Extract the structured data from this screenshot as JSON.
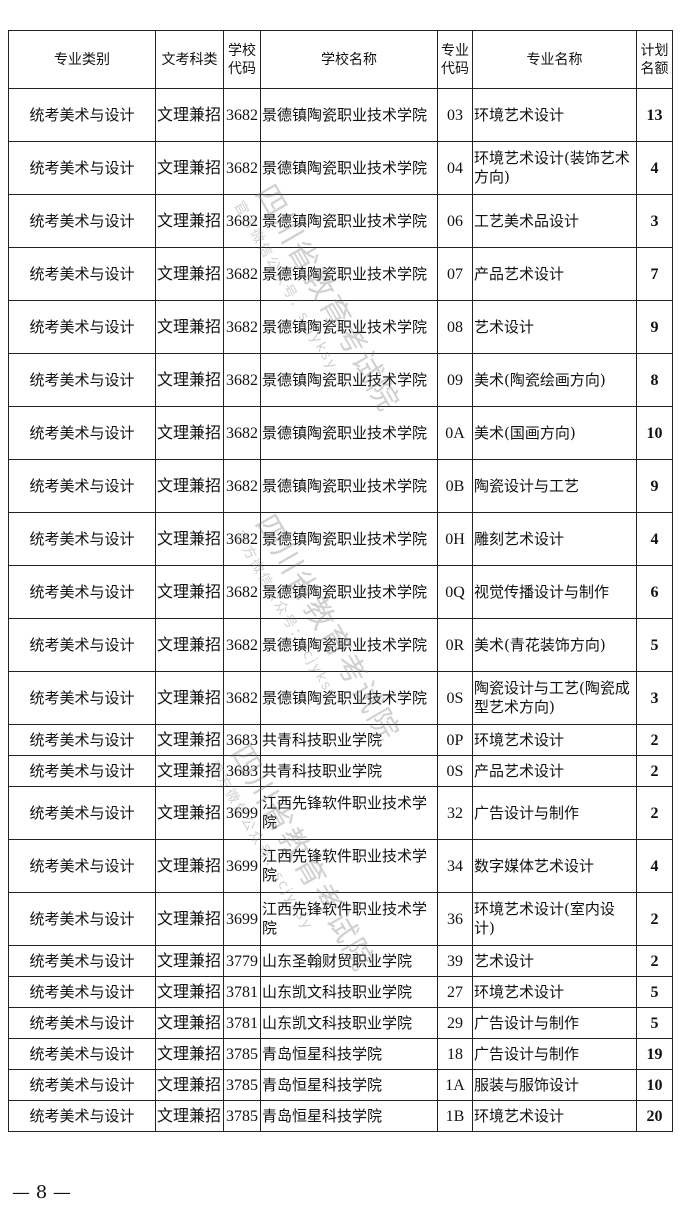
{
  "headers": [
    "专业类别",
    "文考科类",
    "学校代码",
    "学校名称",
    "专业代码",
    "专业名称",
    "计划名额"
  ],
  "rows": [
    [
      "统考美术与设计",
      "文理兼招",
      "3682",
      "景德镇陶瓷职业技术学院",
      "03",
      "环境艺术设计",
      "13"
    ],
    [
      "统考美术与设计",
      "文理兼招",
      "3682",
      "景德镇陶瓷职业技术学院",
      "04",
      "环境艺术设计(装饰艺术方向)",
      "4"
    ],
    [
      "统考美术与设计",
      "文理兼招",
      "3682",
      "景德镇陶瓷职业技术学院",
      "06",
      "工艺美术品设计",
      "3"
    ],
    [
      "统考美术与设计",
      "文理兼招",
      "3682",
      "景德镇陶瓷职业技术学院",
      "07",
      "产品艺术设计",
      "7"
    ],
    [
      "统考美术与设计",
      "文理兼招",
      "3682",
      "景德镇陶瓷职业技术学院",
      "08",
      "艺术设计",
      "9"
    ],
    [
      "统考美术与设计",
      "文理兼招",
      "3682",
      "景德镇陶瓷职业技术学院",
      "09",
      "美术(陶瓷绘画方向)",
      "8"
    ],
    [
      "统考美术与设计",
      "文理兼招",
      "3682",
      "景德镇陶瓷职业技术学院",
      "0A",
      "美术(国画方向)",
      "10"
    ],
    [
      "统考美术与设计",
      "文理兼招",
      "3682",
      "景德镇陶瓷职业技术学院",
      "0B",
      "陶瓷设计与工艺",
      "9"
    ],
    [
      "统考美术与设计",
      "文理兼招",
      "3682",
      "景德镇陶瓷职业技术学院",
      "0H",
      "雕刻艺术设计",
      "4"
    ],
    [
      "统考美术与设计",
      "文理兼招",
      "3682",
      "景德镇陶瓷职业技术学院",
      "0Q",
      "视觉传播设计与制作",
      "6"
    ],
    [
      "统考美术与设计",
      "文理兼招",
      "3682",
      "景德镇陶瓷职业技术学院",
      "0R",
      "美术(青花装饰方向)",
      "5"
    ],
    [
      "统考美术与设计",
      "文理兼招",
      "3682",
      "景德镇陶瓷职业技术学院",
      "0S",
      "陶瓷设计与工艺(陶瓷成型艺术方向)",
      "3"
    ],
    [
      "统考美术与设计",
      "文理兼招",
      "3683",
      "共青科技职业学院",
      "0P",
      "环境艺术设计",
      "2"
    ],
    [
      "统考美术与设计",
      "文理兼招",
      "3683",
      "共青科技职业学院",
      "0S",
      "产品艺术设计",
      "2"
    ],
    [
      "统考美术与设计",
      "文理兼招",
      "3699",
      "江西先锋软件职业技术学院",
      "32",
      "广告设计与制作",
      "2"
    ],
    [
      "统考美术与设计",
      "文理兼招",
      "3699",
      "江西先锋软件职业技术学院",
      "34",
      "数字媒体艺术设计",
      "4"
    ],
    [
      "统考美术与设计",
      "文理兼招",
      "3699",
      "江西先锋软件职业技术学院",
      "36",
      "环境艺术设计(室内设计)",
      "2"
    ],
    [
      "统考美术与设计",
      "文理兼招",
      "3779",
      "山东圣翰财贸职业学院",
      "39",
      "艺术设计",
      "2"
    ],
    [
      "统考美术与设计",
      "文理兼招",
      "3781",
      "山东凯文科技职业学院",
      "27",
      "环境艺术设计",
      "5"
    ],
    [
      "统考美术与设计",
      "文理兼招",
      "3781",
      "山东凯文科技职业学院",
      "29",
      "广告设计与制作",
      "5"
    ],
    [
      "统考美术与设计",
      "文理兼招",
      "3785",
      "青岛恒星科技学院",
      "18",
      "广告设计与制作",
      "19"
    ],
    [
      "统考美术与设计",
      "文理兼招",
      "3785",
      "青岛恒星科技学院",
      "1A",
      "服装与服饰设计",
      "10"
    ],
    [
      "统考美术与设计",
      "文理兼招",
      "3785",
      "青岛恒星科技学院",
      "1B",
      "环境艺术设计",
      "20"
    ]
  ],
  "watermark": {
    "title": "四川省教育考试院",
    "sub": "官方微信公众号：scjyksy"
  },
  "page_number": "— 8 —"
}
